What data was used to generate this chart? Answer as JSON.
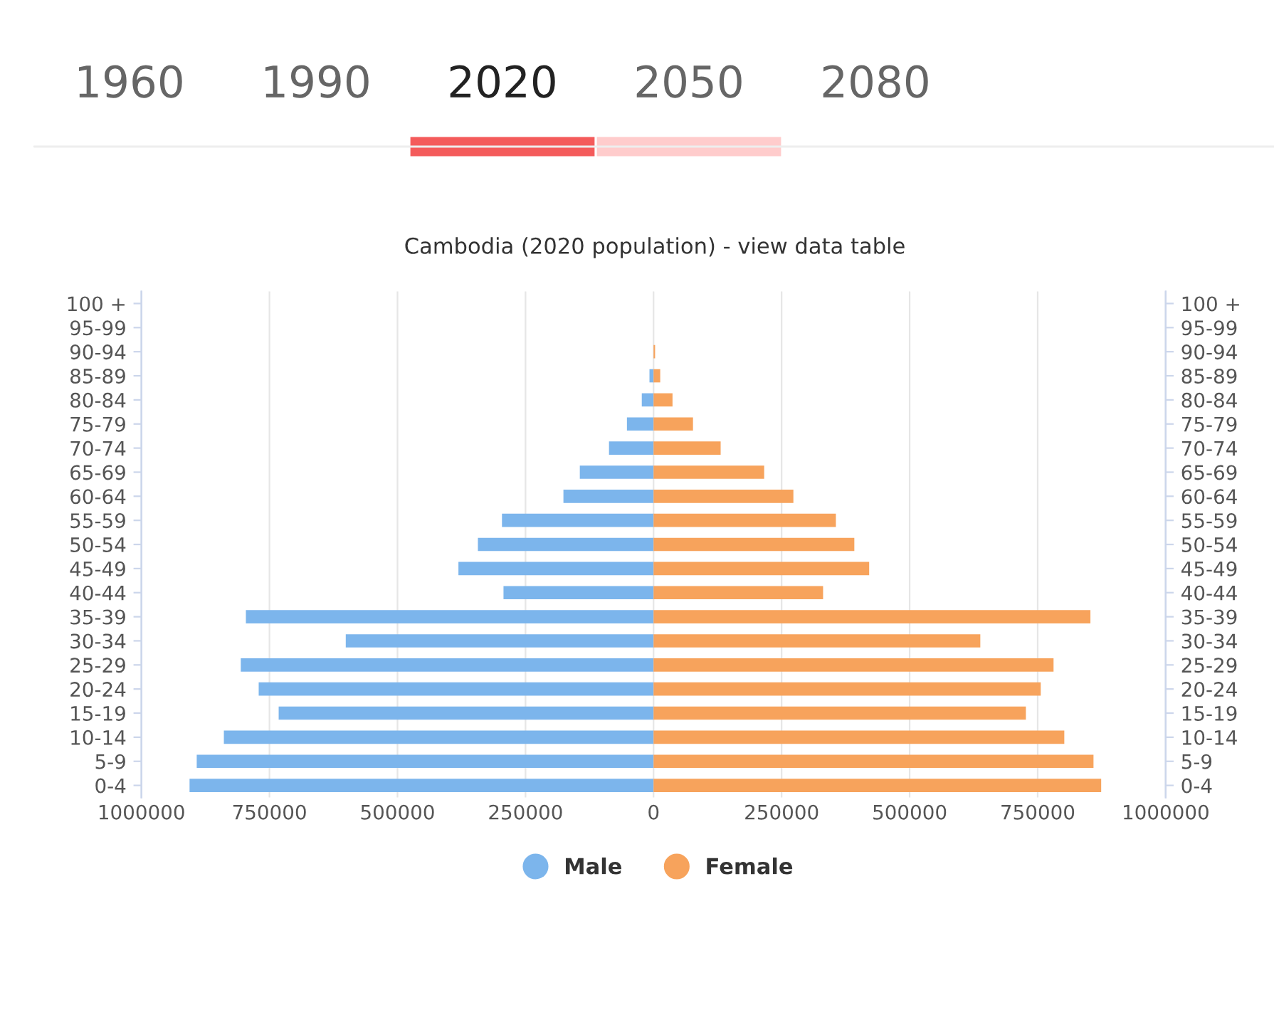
{
  "chart_data": {
    "type": "bar",
    "orientation": "horizontal",
    "stacked": true,
    "title": "Cambodia (2020 population) - view data table",
    "annotations": [
      "1960",
      "1990",
      "2020",
      "2050",
      "2080"
    ],
    "categories": [
      "100 +",
      "95-99",
      "90-94",
      "85-89",
      "80-84",
      "75-79",
      "70-74",
      "65-69",
      "60-64",
      "55-59",
      "50-54",
      "45-49",
      "40-44",
      "35-39",
      "30-34",
      "25-29",
      "20-24",
      "15-19",
      "10-14",
      "5-9",
      "0-4"
    ],
    "series": [
      {
        "name": "Male",
        "color": "#7cb5ec",
        "values": [
          0,
          0,
          0,
          -8000,
          -23000,
          -52000,
          -87000,
          -144000,
          -176000,
          -296000,
          -343000,
          -381000,
          -293000,
          -796000,
          -601000,
          -806000,
          -771000,
          -732000,
          -839000,
          -892000,
          -906000
        ]
      },
      {
        "name": "Female",
        "color": "#f7a35c",
        "values": [
          0,
          0,
          3000,
          13000,
          37000,
          77000,
          131000,
          216000,
          273000,
          356000,
          392000,
          421000,
          331000,
          853000,
          638000,
          781000,
          756000,
          727000,
          802000,
          859000,
          874000
        ]
      }
    ],
    "xlim": [
      -1000000,
      1000000
    ],
    "xticks": [
      {
        "value": -1000000,
        "label": "1000000"
      },
      {
        "value": -750000,
        "label": "750000"
      },
      {
        "value": -500000,
        "label": "500000"
      },
      {
        "value": -250000,
        "label": "250000"
      },
      0,
      250000,
      500000,
      750000,
      1000000
    ],
    "grid": "x",
    "legend": "bottom",
    "marker": "circle"
  }
}
